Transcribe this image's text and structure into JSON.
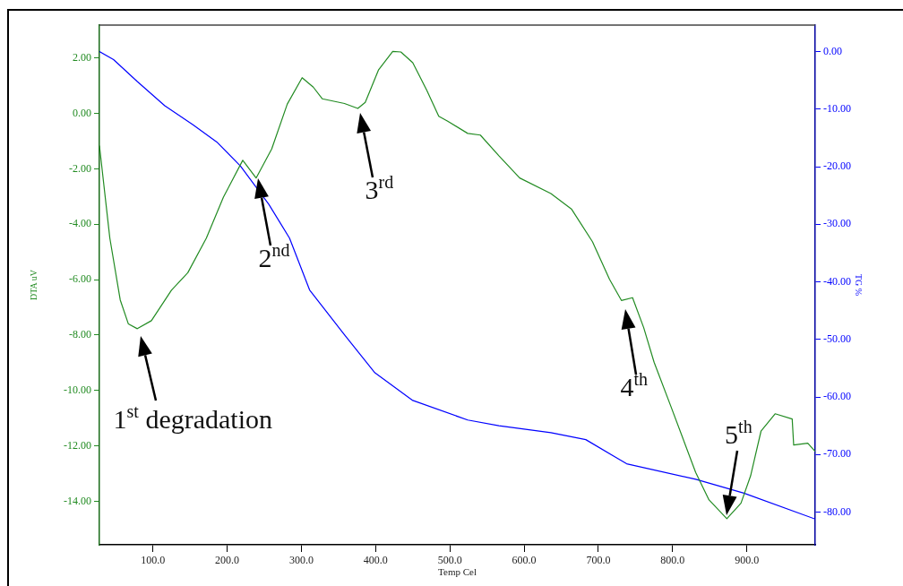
{
  "chart_data": {
    "type": "line",
    "xlabel": "Temp Cel",
    "ylabel": "DTA uV",
    "y2label": "TG %",
    "xlim": [
      28,
      992
    ],
    "ylim": [
      -15.57,
      3.19
    ],
    "y2lim": [
      -85.67,
      4.6
    ],
    "xticks": [
      {
        "value": 100,
        "label": "100.0"
      },
      {
        "value": 200,
        "label": "200.0"
      },
      {
        "value": 300,
        "label": "300.0"
      },
      {
        "value": 400,
        "label": "400.0"
      },
      {
        "value": 500,
        "label": "500.0"
      },
      {
        "value": 600,
        "label": "600.0"
      },
      {
        "value": 700,
        "label": "700.0"
      },
      {
        "value": 800,
        "label": "800.0"
      },
      {
        "value": 900,
        "label": "900.0"
      }
    ],
    "yticks": [
      {
        "value": 2,
        "label": "2.00"
      },
      {
        "value": 0,
        "label": "0.00"
      },
      {
        "value": -2,
        "label": "-2.00"
      },
      {
        "value": -4,
        "label": "-4.00"
      },
      {
        "value": -6,
        "label": "-6.00"
      },
      {
        "value": -8,
        "label": "-8.00"
      },
      {
        "value": -10,
        "label": "-10.00"
      },
      {
        "value": -12,
        "label": "-12.00"
      },
      {
        "value": -14,
        "label": "-14.00"
      }
    ],
    "y2ticks": [
      {
        "value": 0,
        "label": "0.00"
      },
      {
        "value": -10,
        "label": "-10.00"
      },
      {
        "value": -20,
        "label": "-20.00"
      },
      {
        "value": -30,
        "label": "-30.00"
      },
      {
        "value": -40,
        "label": "-40.00"
      },
      {
        "value": -50,
        "label": "-50.00"
      },
      {
        "value": -60,
        "label": "-60.00"
      },
      {
        "value": -70,
        "label": "-70.00"
      },
      {
        "value": -80,
        "label": "-80.00"
      }
    ],
    "grid": false,
    "legend": false,
    "marker": "none",
    "line_style": "solid",
    "series": [
      {
        "color": "#228b22",
        "x": [
          28,
          42,
          56,
          67,
          79,
          98,
          125,
          147,
          172,
          195,
          221,
          239,
          260,
          281,
          301,
          316,
          328,
          358,
          376,
          386,
          404,
          423,
          434,
          450,
          469,
          485,
          497,
          524,
          541,
          566,
          594,
          636,
          664,
          692,
          715,
          731,
          746,
          761,
          775,
          798,
          831,
          849,
          873,
          892,
          905,
          919,
          938,
          961,
          963,
          982,
          992
        ],
        "values": [
          -1.16,
          -4.5,
          -6.73,
          -7.6,
          -7.77,
          -7.48,
          -6.38,
          -5.75,
          -4.5,
          -3.02,
          -1.69,
          -2.33,
          -1.28,
          0.34,
          1.29,
          0.95,
          0.53,
          0.36,
          0.18,
          0.4,
          1.58,
          2.24,
          2.22,
          1.83,
          0.83,
          -0.1,
          -0.28,
          -0.72,
          -0.78,
          -1.53,
          -2.33,
          -2.89,
          -3.46,
          -4.63,
          -5.99,
          -6.75,
          -6.65,
          -7.73,
          -8.98,
          -10.6,
          -12.96,
          -13.95,
          -14.63,
          -14.07,
          -13.08,
          -11.47,
          -10.84,
          -11.03,
          -11.97,
          -11.9,
          -12.2
        ]
      },
      {
        "color": "#0000ff",
        "axis": "y2",
        "x": [
          28,
          47,
          79,
          116,
          154,
          186,
          218,
          256,
          284,
          311,
          358,
          399,
          450,
          524,
          566,
          636,
          683,
          738,
          831,
          896,
          992
        ],
        "values": [
          0,
          -1.4,
          -5.2,
          -9.4,
          -12.7,
          -15.7,
          -19.9,
          -26.5,
          -32.4,
          -41.4,
          -49.2,
          -55.8,
          -60.6,
          -64,
          -65,
          -66.2,
          -67.4,
          -71.6,
          -74.3,
          -76.7,
          -81.2
        ]
      }
    ],
    "annotations": [
      {
        "text": "1$^{st}$ degradation",
        "x": 79,
        "y": -7.77
      },
      {
        "text": "2$^{nd}$",
        "x": 239,
        "y": -2.33
      },
      {
        "text": "3$^{rd}$",
        "x": 376,
        "y": 0.18
      },
      {
        "text": "4$^{th}$",
        "x": 731,
        "y": -6.75
      },
      {
        "text": "5$^{th}$",
        "x": 873,
        "y": -14.63
      }
    ]
  }
}
